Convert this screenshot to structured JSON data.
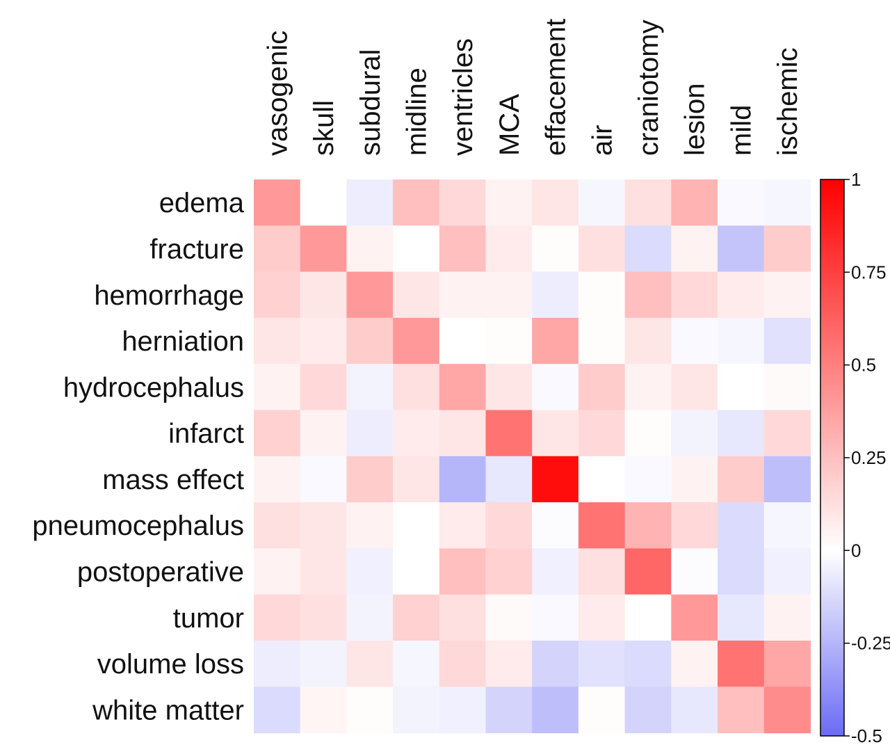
{
  "chart_data": {
    "type": "heatmap",
    "title": "",
    "xlabel": "",
    "ylabel": "",
    "columns": [
      "vasogenic",
      "skull",
      "subdural",
      "midline",
      "ventricles",
      "MCA",
      "effacement",
      "air",
      "craniotomy",
      "lesion",
      "mild",
      "ischemic"
    ],
    "rows": [
      "edema",
      "fracture",
      "hemorrhage",
      "herniation",
      "hydrocephalus",
      "infarct",
      "mass effect",
      "pneumocephalus",
      "postoperative",
      "tumor",
      "volume loss",
      "white matter"
    ],
    "values": [
      [
        0.4,
        0.0,
        -0.06,
        0.25,
        0.15,
        0.05,
        0.1,
        -0.03,
        0.12,
        0.3,
        -0.02,
        -0.03
      ],
      [
        0.2,
        0.4,
        0.05,
        0.0,
        0.25,
        0.08,
        0.01,
        0.12,
        -0.12,
        0.05,
        -0.2,
        0.2
      ],
      [
        0.18,
        0.1,
        0.4,
        0.1,
        0.05,
        0.05,
        -0.06,
        0.01,
        0.25,
        0.15,
        0.08,
        0.05
      ],
      [
        0.1,
        0.08,
        0.2,
        0.4,
        0.0,
        0.01,
        0.35,
        0.01,
        0.1,
        -0.02,
        -0.03,
        -0.1
      ],
      [
        0.05,
        0.15,
        -0.04,
        0.12,
        0.35,
        0.1,
        -0.02,
        0.2,
        0.05,
        0.1,
        0.0,
        0.02
      ],
      [
        0.18,
        0.05,
        -0.06,
        0.08,
        0.1,
        0.55,
        0.1,
        0.15,
        0.01,
        -0.04,
        -0.08,
        0.15
      ],
      [
        0.05,
        -0.02,
        0.2,
        0.1,
        -0.25,
        -0.08,
        0.95,
        0.0,
        -0.02,
        0.05,
        0.2,
        -0.22
      ],
      [
        0.12,
        0.1,
        0.05,
        0.0,
        0.08,
        0.15,
        -0.01,
        0.55,
        0.3,
        0.15,
        -0.12,
        -0.03
      ],
      [
        0.05,
        0.1,
        -0.05,
        0.0,
        0.25,
        0.18,
        -0.05,
        0.12,
        0.6,
        -0.01,
        -0.12,
        -0.05
      ],
      [
        0.15,
        0.12,
        -0.04,
        0.18,
        0.12,
        0.02,
        -0.02,
        0.08,
        0.0,
        0.4,
        -0.08,
        0.05
      ],
      [
        -0.06,
        -0.04,
        0.1,
        -0.03,
        0.15,
        0.08,
        -0.15,
        -0.1,
        -0.12,
        0.05,
        0.55,
        0.35
      ],
      [
        -0.12,
        0.04,
        0.01,
        -0.04,
        -0.05,
        -0.15,
        -0.22,
        0.01,
        -0.15,
        -0.08,
        0.25,
        0.45
      ]
    ],
    "colorbar": {
      "min": -0.5,
      "max": 1,
      "ticks": [
        1,
        0.75,
        0.5,
        0.25,
        0,
        -0.25,
        -0.5
      ],
      "tick_labels": [
        "1",
        "0.75",
        "0.5",
        "0.25",
        "0",
        "-0.25",
        "-0.5"
      ],
      "colors": {
        "low": "#6b6bf5",
        "mid": "#ffffff",
        "high": "#ff0000"
      }
    },
    "grid": false,
    "legend": "right colorbar"
  }
}
